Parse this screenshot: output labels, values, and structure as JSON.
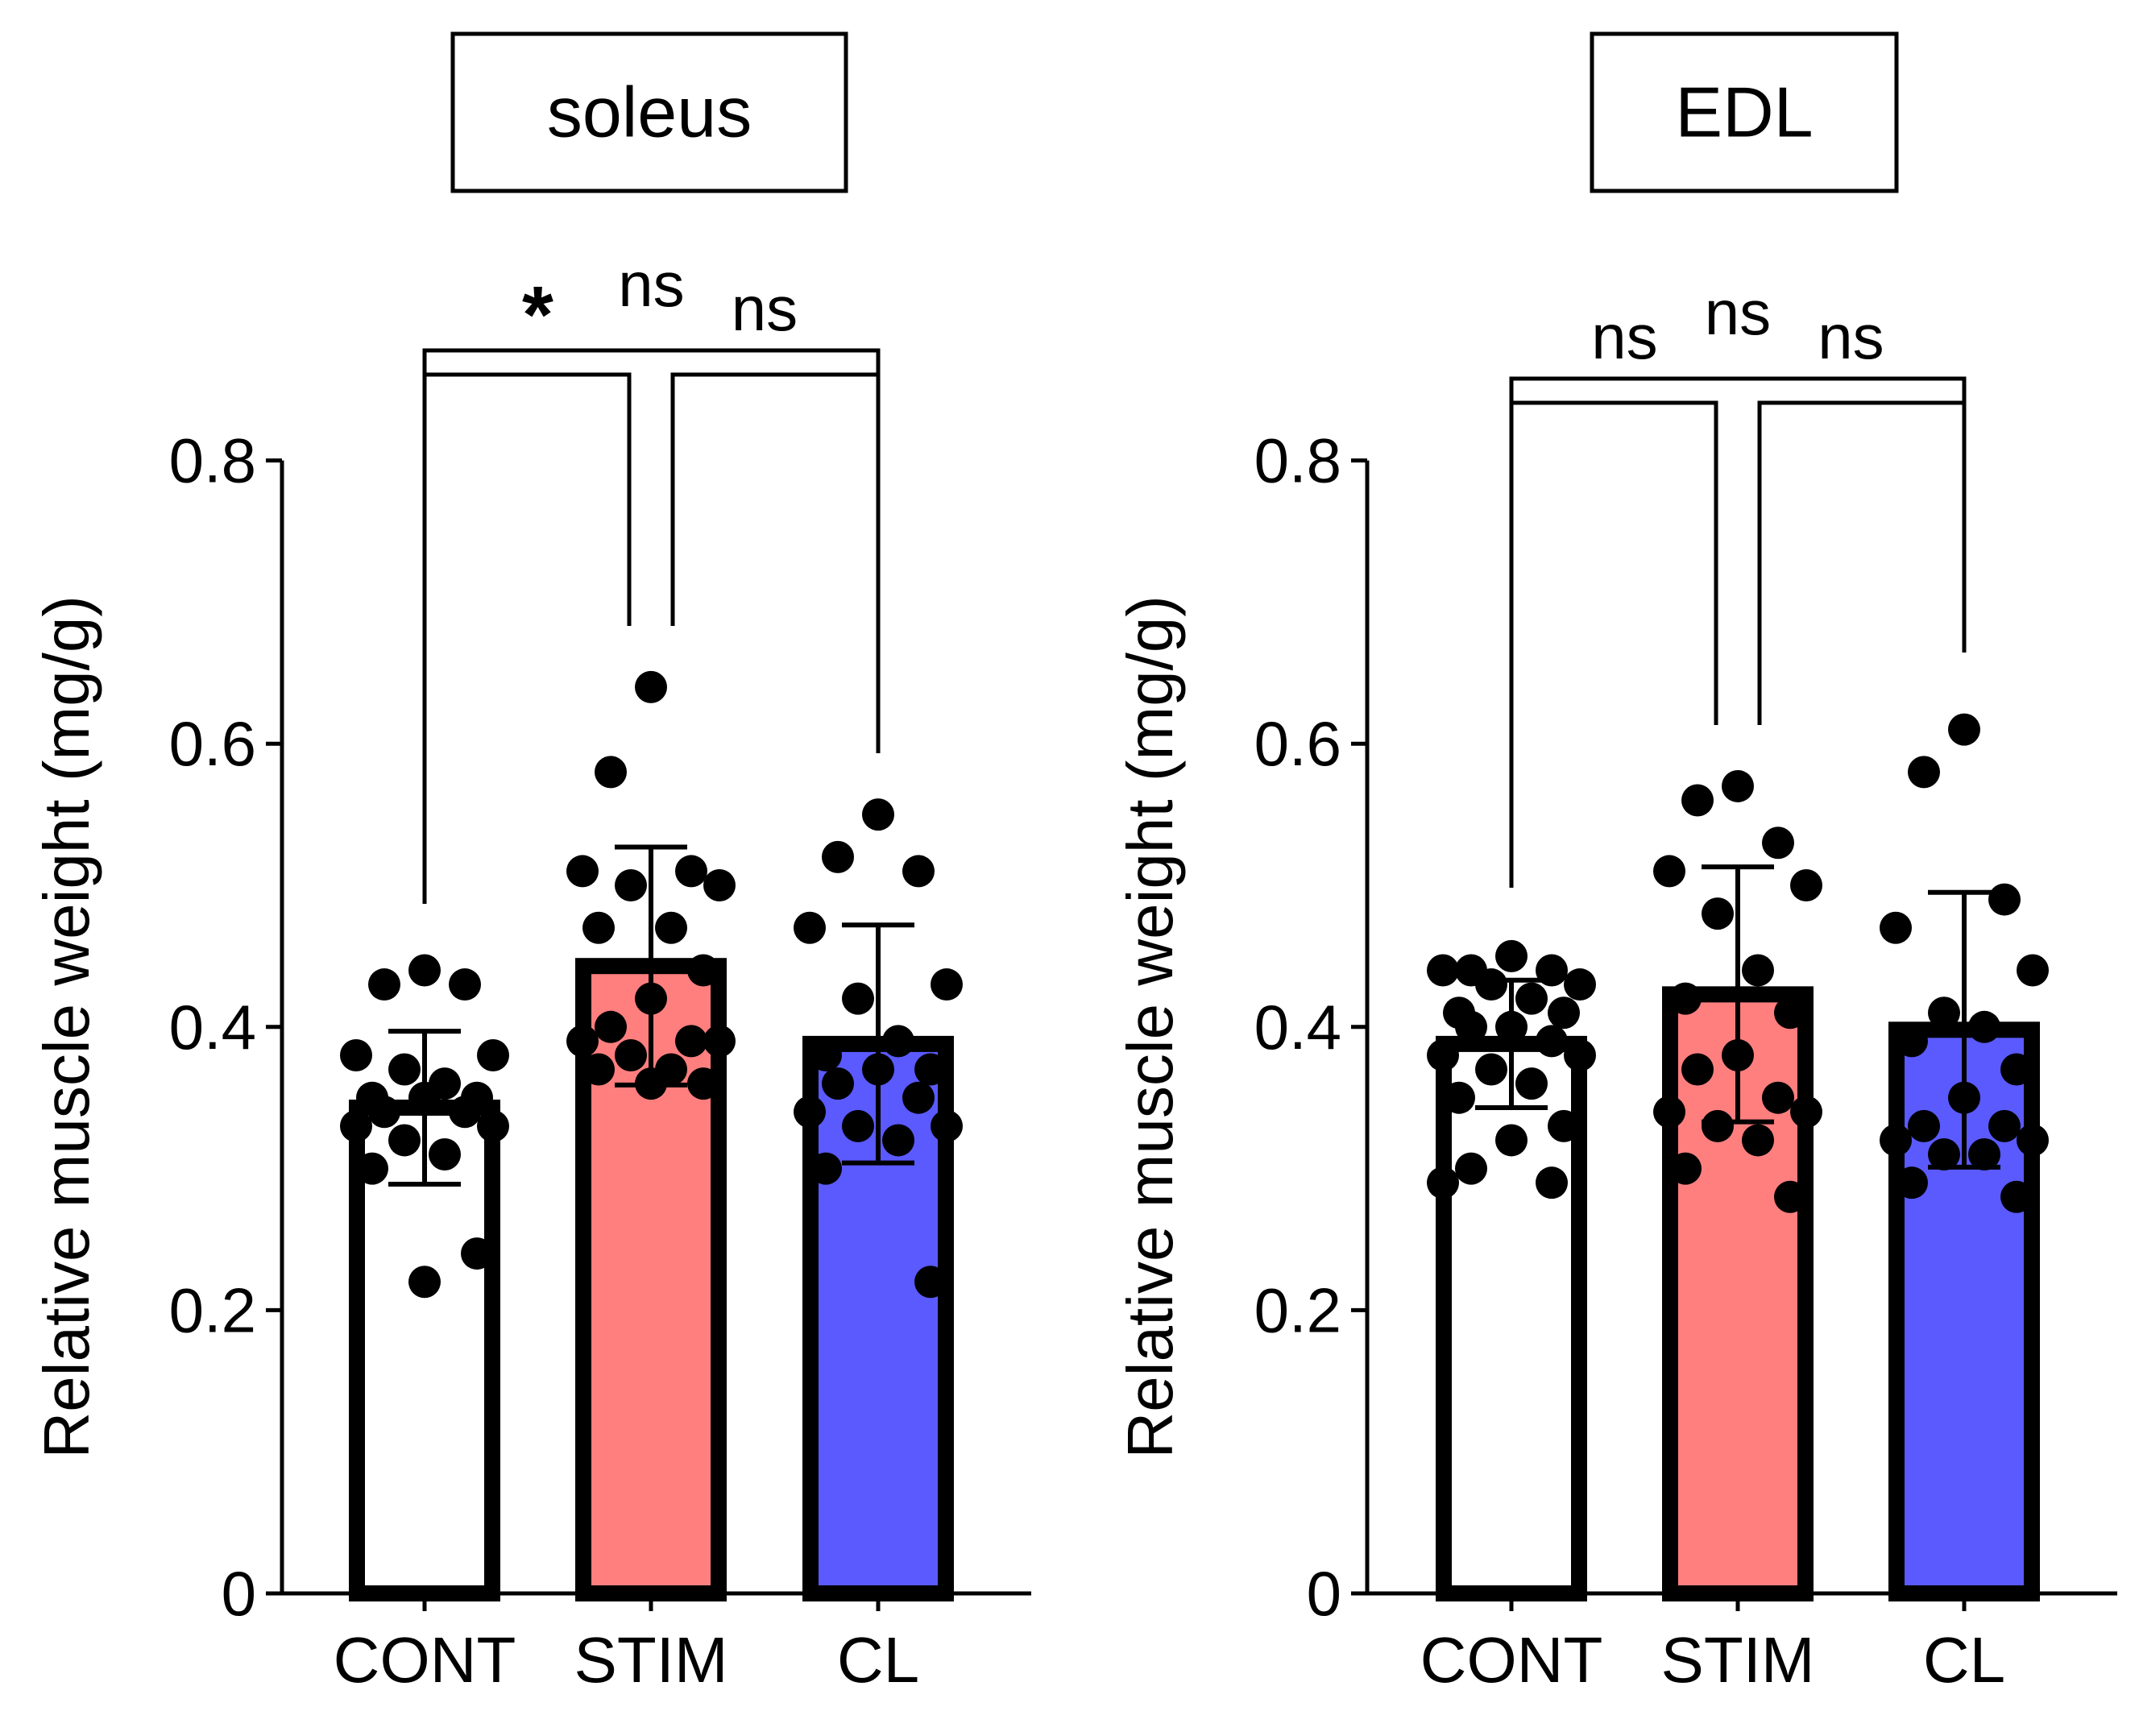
{
  "chart_data": [
    {
      "type": "bar",
      "title": "soleus",
      "xlabel": "",
      "ylabel": "Relative muscle weight (mg/g)",
      "ylim": [
        0,
        0.8
      ],
      "yticks": [
        0,
        0.2,
        0.4,
        0.6,
        0.8
      ],
      "ytick_labels": [
        "0",
        "0.2",
        "0.4",
        "0.6",
        "0.8"
      ],
      "categories": [
        "CONT",
        "STIM",
        "CL"
      ],
      "colors": [
        "#ffffff",
        "#ff7f7f",
        "#5a5aff"
      ],
      "means": [
        0.343,
        0.443,
        0.388
      ],
      "errors": [
        0.054,
        0.084,
        0.084
      ],
      "points": [
        [
          0.44,
          0.43,
          0.43,
          0.38,
          0.38,
          0.37,
          0.36,
          0.35,
          0.35,
          0.35,
          0.34,
          0.34,
          0.33,
          0.33,
          0.32,
          0.31,
          0.3,
          0.24,
          0.22
        ],
        [
          0.64,
          0.58,
          0.51,
          0.51,
          0.5,
          0.5,
          0.47,
          0.47,
          0.44,
          0.42,
          0.4,
          0.39,
          0.39,
          0.39,
          0.38,
          0.37,
          0.37,
          0.36,
          0.36
        ],
        [
          0.55,
          0.52,
          0.51,
          0.47,
          0.43,
          0.42,
          0.39,
          0.38,
          0.37,
          0.37,
          0.36,
          0.35,
          0.34,
          0.33,
          0.33,
          0.32,
          0.3,
          0.22
        ]
      ],
      "comparisons": [
        {
          "from": 0,
          "to": 2,
          "label": "ns",
          "level": 2
        },
        {
          "from": 0,
          "to": 1,
          "label": "*",
          "level": 1
        },
        {
          "from": 1,
          "to": 2,
          "label": "ns",
          "level": 1
        }
      ]
    },
    {
      "type": "bar",
      "title": "EDL",
      "xlabel": "",
      "ylabel": "Relative muscle weight (mg/g)",
      "ylim": [
        0,
        0.8
      ],
      "yticks": [
        0,
        0.2,
        0.4,
        0.6,
        0.8
      ],
      "ytick_labels": [
        "0",
        "0.2",
        "0.4",
        "0.6",
        "0.8"
      ],
      "categories": [
        "CONT",
        "STIM",
        "CL"
      ],
      "colors": [
        "#ffffff",
        "#ff7f7f",
        "#5a5aff"
      ],
      "means": [
        0.388,
        0.423,
        0.398
      ],
      "errors": [
        0.045,
        0.09,
        0.097
      ],
      "points": [
        [
          0.45,
          0.44,
          0.44,
          0.44,
          0.43,
          0.43,
          0.42,
          0.41,
          0.41,
          0.4,
          0.4,
          0.39,
          0.38,
          0.38,
          0.37,
          0.36,
          0.35,
          0.33,
          0.32,
          0.3,
          0.29,
          0.29
        ],
        [
          0.57,
          0.56,
          0.53,
          0.51,
          0.5,
          0.48,
          0.44,
          0.42,
          0.41,
          0.38,
          0.37,
          0.35,
          0.34,
          0.34,
          0.33,
          0.32,
          0.3,
          0.28
        ],
        [
          0.61,
          0.58,
          0.49,
          0.47,
          0.44,
          0.41,
          0.4,
          0.39,
          0.37,
          0.35,
          0.33,
          0.33,
          0.32,
          0.32,
          0.31,
          0.31,
          0.29,
          0.28
        ]
      ],
      "comparisons": [
        {
          "from": 0,
          "to": 2,
          "label": "ns",
          "level": 2
        },
        {
          "from": 0,
          "to": 1,
          "label": "ns",
          "level": 1
        },
        {
          "from": 1,
          "to": 2,
          "label": "ns",
          "level": 1
        }
      ]
    }
  ]
}
